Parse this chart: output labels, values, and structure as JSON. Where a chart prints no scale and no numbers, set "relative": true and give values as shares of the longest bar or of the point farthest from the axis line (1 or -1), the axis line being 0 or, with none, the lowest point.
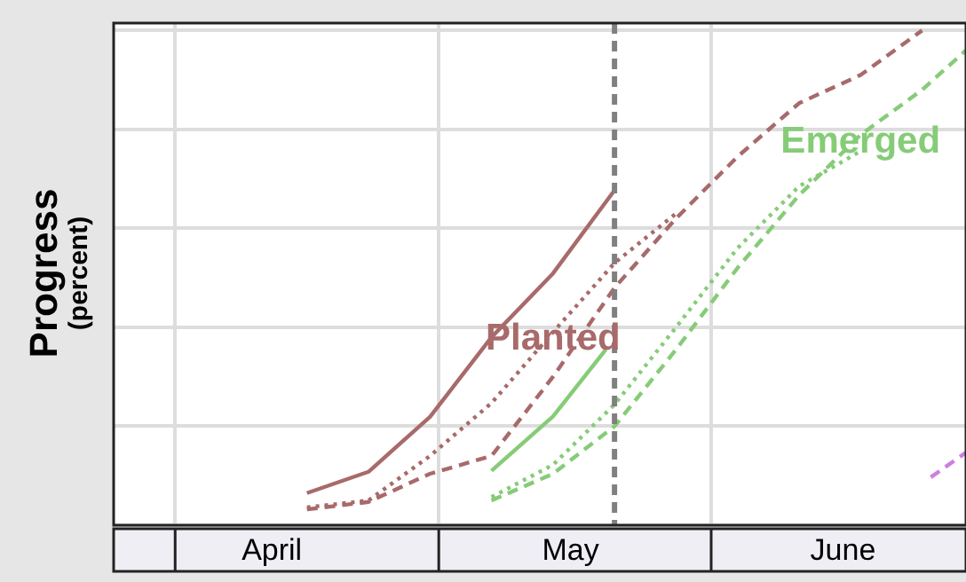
{
  "chart_data": {
    "type": "line",
    "ylabel": "Progress (percent)",
    "relative": true,
    "grid": true,
    "legend": false,
    "marker": "none",
    "tick_labels": "x",
    "xlim": [
      "--03-25",
      "--06-30"
    ],
    "xticks": [
      {
        "value": "--04-01",
        "label": null
      },
      {
        "value": "--04-12",
        "label": "April"
      },
      {
        "value": "--05-01",
        "label": null
      },
      {
        "value": "--05-16",
        "label": "May"
      },
      {
        "value": "--06-01",
        "label": null
      },
      {
        "value": "--06-16",
        "label": "June"
      }
    ],
    "series": [
      {
        "color": "#a86a6a",
        "line_style": "solid",
        "x": [
          "--04-16",
          "--04-23",
          "--04-30",
          "--05-07",
          "--05-14",
          "--05-21"
        ],
        "values": [
          0.065,
          0.108,
          0.219,
          0.38,
          0.509,
          0.677
        ]
      },
      {
        "name": "Planted",
        "color": "#a86a6a",
        "line_style": "dotted",
        "x": [
          "--04-16",
          "--04-23",
          "--04-30",
          "--05-07",
          "--05-14",
          "--05-21",
          "--05-28"
        ],
        "values": [
          0.036,
          0.05,
          0.14,
          0.247,
          0.39,
          0.53,
          0.63
        ]
      },
      {
        "color": "#a86a6a",
        "line_style": "dashed",
        "x": [
          "--04-16",
          "--04-23",
          "--04-30",
          "--05-07",
          "--05-14",
          "--05-21",
          "--05-28",
          "--06-04",
          "--06-11",
          "--06-18",
          "--06-25"
        ],
        "values": [
          0.032,
          0.047,
          0.104,
          0.14,
          0.3,
          0.48,
          0.62,
          0.745,
          0.853,
          0.91,
          1
        ]
      },
      {
        "color": "#86cc78",
        "line_style": "solid",
        "x": [
          "--05-07",
          "--05-14",
          "--05-20"
        ],
        "values": [
          0.11,
          0.22,
          0.355
        ]
      },
      {
        "color": "#86cc78",
        "line_style": "dotted",
        "x": [
          "--05-07",
          "--05-14",
          "--05-21",
          "--05-28",
          "--06-04",
          "--06-11",
          "--06-18"
        ],
        "values": [
          0.057,
          0.122,
          0.244,
          0.4,
          0.56,
          0.685,
          0.756
        ]
      },
      {
        "name": "Emerged",
        "color": "#86cc78",
        "line_style": "dashed",
        "x": [
          "--05-07",
          "--05-14",
          "--05-21",
          "--05-28",
          "--06-04",
          "--06-11",
          "--06-18",
          "--06-25",
          "--06-30"
        ],
        "values": [
          0.05,
          0.104,
          0.2,
          0.355,
          0.52,
          0.667,
          0.789,
          0.88,
          0.96
        ]
      },
      {
        "color": "#cc80dd",
        "line_style": "dashed",
        "x": [
          "--06-26",
          "--06-30"
        ],
        "values": [
          0.097,
          0.147
        ]
      }
    ],
    "ref_lines": [
      {
        "axis": "x",
        "value": "--05-21",
        "color": "#808080",
        "line_style": "dashed"
      }
    ]
  }
}
